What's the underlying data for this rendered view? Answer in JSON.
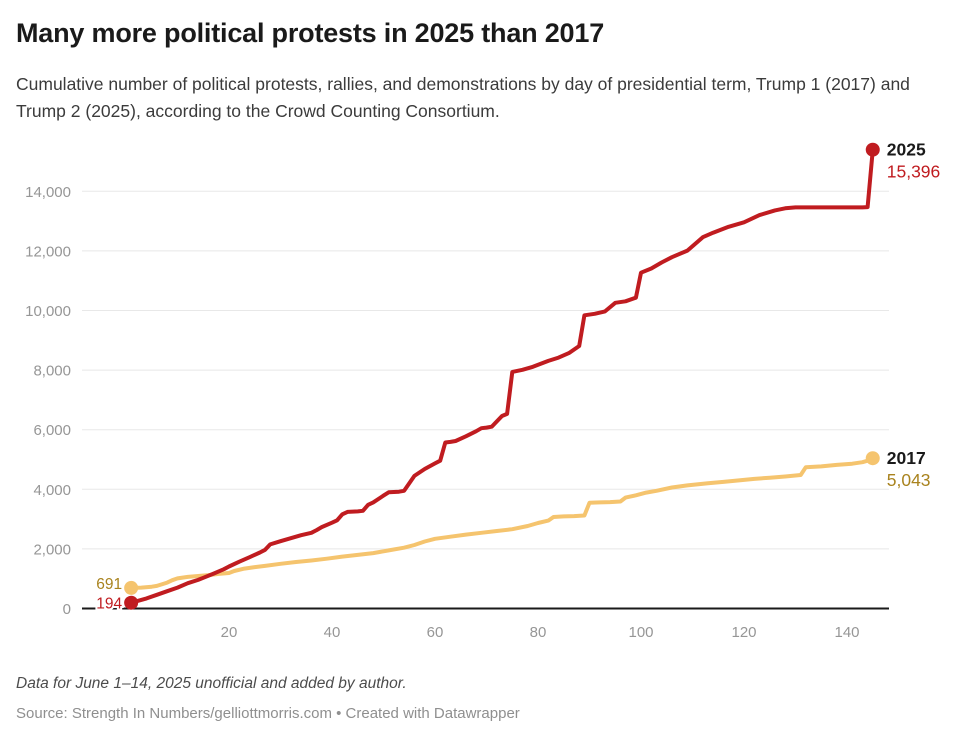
{
  "header": {
    "title": "Many more political protests in 2025 than 2017",
    "subtitle": "Cumulative number of political protests, rallies, and demonstrations by day of presidential term, Trump 1 (2017) and Trump 2 (2025), according to the Crowd Counting Consortium."
  },
  "footer": {
    "note": "Data for June 1–14, 2025 unofficial and added by author.",
    "source": "Source: Strength In Numbers/gelliottmorris.com • Created with Datawrapper"
  },
  "chart_data": {
    "type": "line",
    "title": "Many more political protests in 2025 than 2017",
    "xlabel": "",
    "ylabel": "",
    "grid": true,
    "legend_position": "end-of-line-labels",
    "x_axis": {
      "ticks": [
        20,
        40,
        60,
        80,
        100,
        120,
        140
      ],
      "labels": [
        "20",
        "40",
        "60",
        "80",
        "100",
        "120",
        "140"
      ],
      "range": [
        1,
        148
      ]
    },
    "y_axis": {
      "ticks": [
        0,
        2000,
        4000,
        6000,
        8000,
        10000,
        12000,
        14000
      ],
      "labels": [
        "0",
        "2,000",
        "4,000",
        "6,000",
        "8,000",
        "10,000",
        "12,000",
        "14,000"
      ],
      "range": [
        0,
        15500
      ]
    },
    "style": {
      "grid_color": "#e8e8e8",
      "tick_color": "#969696",
      "axis_color": "#1a1a1a",
      "name_color": "#1a1a1a"
    },
    "series": [
      {
        "name": "2025",
        "color": "#c01c20",
        "value_color": "#c01c20",
        "start_label": "194",
        "start_value": 194,
        "value_label": "15,396",
        "final_value": 15396,
        "points": [
          [
            1,
            194
          ],
          [
            2,
            240
          ],
          [
            4,
            340
          ],
          [
            6,
            460
          ],
          [
            8,
            580
          ],
          [
            10,
            700
          ],
          [
            12,
            850
          ],
          [
            14,
            960
          ],
          [
            15,
            1030
          ],
          [
            17,
            1170
          ],
          [
            19,
            1320
          ],
          [
            20,
            1410
          ],
          [
            22,
            1570
          ],
          [
            24,
            1720
          ],
          [
            26,
            1880
          ],
          [
            27,
            1970
          ],
          [
            28,
            2150
          ],
          [
            30,
            2260
          ],
          [
            32,
            2360
          ],
          [
            34,
            2460
          ],
          [
            36,
            2540
          ],
          [
            37,
            2630
          ],
          [
            38,
            2730
          ],
          [
            40,
            2880
          ],
          [
            41,
            2960
          ],
          [
            42,
            3160
          ],
          [
            43,
            3240
          ],
          [
            45,
            3260
          ],
          [
            46,
            3280
          ],
          [
            47,
            3480
          ],
          [
            48,
            3560
          ],
          [
            50,
            3790
          ],
          [
            51,
            3900
          ],
          [
            53,
            3920
          ],
          [
            54,
            3950
          ],
          [
            56,
            4450
          ],
          [
            58,
            4680
          ],
          [
            60,
            4870
          ],
          [
            61,
            4960
          ],
          [
            62,
            5570
          ],
          [
            63,
            5590
          ],
          [
            64,
            5620
          ],
          [
            66,
            5780
          ],
          [
            68,
            5950
          ],
          [
            69,
            6050
          ],
          [
            70,
            6070
          ],
          [
            71,
            6100
          ],
          [
            73,
            6460
          ],
          [
            74,
            6530
          ],
          [
            75,
            7940
          ],
          [
            77,
            8010
          ],
          [
            79,
            8110
          ],
          [
            82,
            8310
          ],
          [
            84,
            8420
          ],
          [
            86,
            8570
          ],
          [
            88,
            8810
          ],
          [
            89,
            9840
          ],
          [
            91,
            9890
          ],
          [
            93,
            9970
          ],
          [
            95,
            10260
          ],
          [
            97,
            10310
          ],
          [
            99,
            10430
          ],
          [
            100,
            11270
          ],
          [
            102,
            11410
          ],
          [
            104,
            11610
          ],
          [
            106,
            11790
          ],
          [
            109,
            12010
          ],
          [
            112,
            12460
          ],
          [
            114,
            12610
          ],
          [
            117,
            12810
          ],
          [
            120,
            12960
          ],
          [
            123,
            13200
          ],
          [
            126,
            13360
          ],
          [
            128,
            13430
          ],
          [
            130,
            13460
          ],
          [
            143,
            13460
          ],
          [
            144,
            13470
          ],
          [
            145,
            15396
          ]
        ]
      },
      {
        "name": "2017",
        "color": "#f5c46e",
        "value_color": "#a9831e",
        "start_label": "691",
        "start_value": 691,
        "value_label": "5,043",
        "final_value": 5043,
        "points": [
          [
            1,
            691
          ],
          [
            2,
            695
          ],
          [
            3,
            700
          ],
          [
            5,
            730
          ],
          [
            6,
            760
          ],
          [
            8,
            870
          ],
          [
            9,
            950
          ],
          [
            10,
            1010
          ],
          [
            12,
            1060
          ],
          [
            14,
            1090
          ],
          [
            16,
            1120
          ],
          [
            18,
            1160
          ],
          [
            20,
            1190
          ],
          [
            21,
            1260
          ],
          [
            23,
            1340
          ],
          [
            25,
            1390
          ],
          [
            27,
            1430
          ],
          [
            30,
            1500
          ],
          [
            33,
            1560
          ],
          [
            36,
            1610
          ],
          [
            39,
            1670
          ],
          [
            42,
            1740
          ],
          [
            45,
            1800
          ],
          [
            48,
            1860
          ],
          [
            51,
            1950
          ],
          [
            54,
            2040
          ],
          [
            56,
            2130
          ],
          [
            58,
            2250
          ],
          [
            60,
            2340
          ],
          [
            63,
            2410
          ],
          [
            66,
            2480
          ],
          [
            69,
            2540
          ],
          [
            72,
            2600
          ],
          [
            75,
            2660
          ],
          [
            78,
            2770
          ],
          [
            80,
            2870
          ],
          [
            82,
            2950
          ],
          [
            83,
            3070
          ],
          [
            85,
            3090
          ],
          [
            87,
            3100
          ],
          [
            89,
            3120
          ],
          [
            90,
            3550
          ],
          [
            92,
            3560
          ],
          [
            94,
            3570
          ],
          [
            96,
            3590
          ],
          [
            97,
            3720
          ],
          [
            99,
            3800
          ],
          [
            101,
            3890
          ],
          [
            103,
            3950
          ],
          [
            106,
            4060
          ],
          [
            109,
            4130
          ],
          [
            113,
            4200
          ],
          [
            116,
            4250
          ],
          [
            119,
            4300
          ],
          [
            122,
            4350
          ],
          [
            125,
            4390
          ],
          [
            128,
            4430
          ],
          [
            131,
            4480
          ],
          [
            132,
            4740
          ],
          [
            135,
            4770
          ],
          [
            138,
            4820
          ],
          [
            141,
            4860
          ],
          [
            143,
            4910
          ],
          [
            144,
            4960
          ],
          [
            145,
            5043
          ]
        ]
      }
    ]
  }
}
